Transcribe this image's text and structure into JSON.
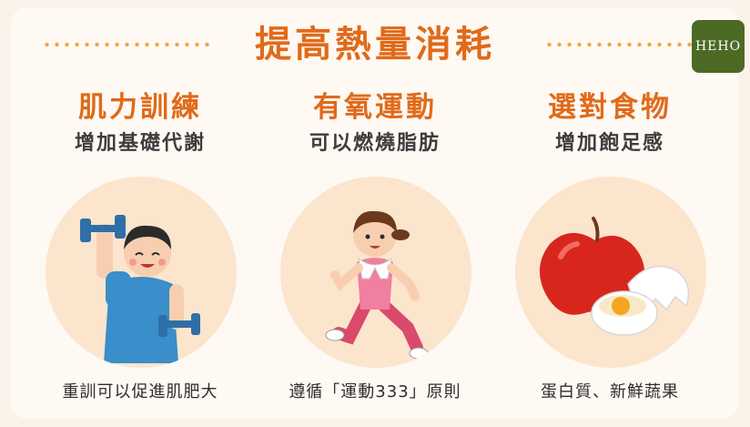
{
  "header": {
    "title": "提高熱量消耗",
    "logo_text": "HEHO"
  },
  "columns": [
    {
      "title": "肌力訓練",
      "subtitle": "增加基礎代謝",
      "illustration": "man-lifting-dumbbells",
      "caption": "重訓可以促進肌肥大"
    },
    {
      "title": "有氧運動",
      "subtitle": "可以燃燒脂肪",
      "illustration": "woman-running",
      "caption": "遵循「運動333」原則"
    },
    {
      "title": "選對食物",
      "subtitle": "增加飽足感",
      "illustration": "apple-and-eggs",
      "caption": "蛋白質、新鮮蔬果"
    }
  ],
  "colors": {
    "accent": "#e06a1a",
    "background": "#fbf3ea",
    "circle": "#fce5cd",
    "logo_bg": "#4d6a24"
  }
}
